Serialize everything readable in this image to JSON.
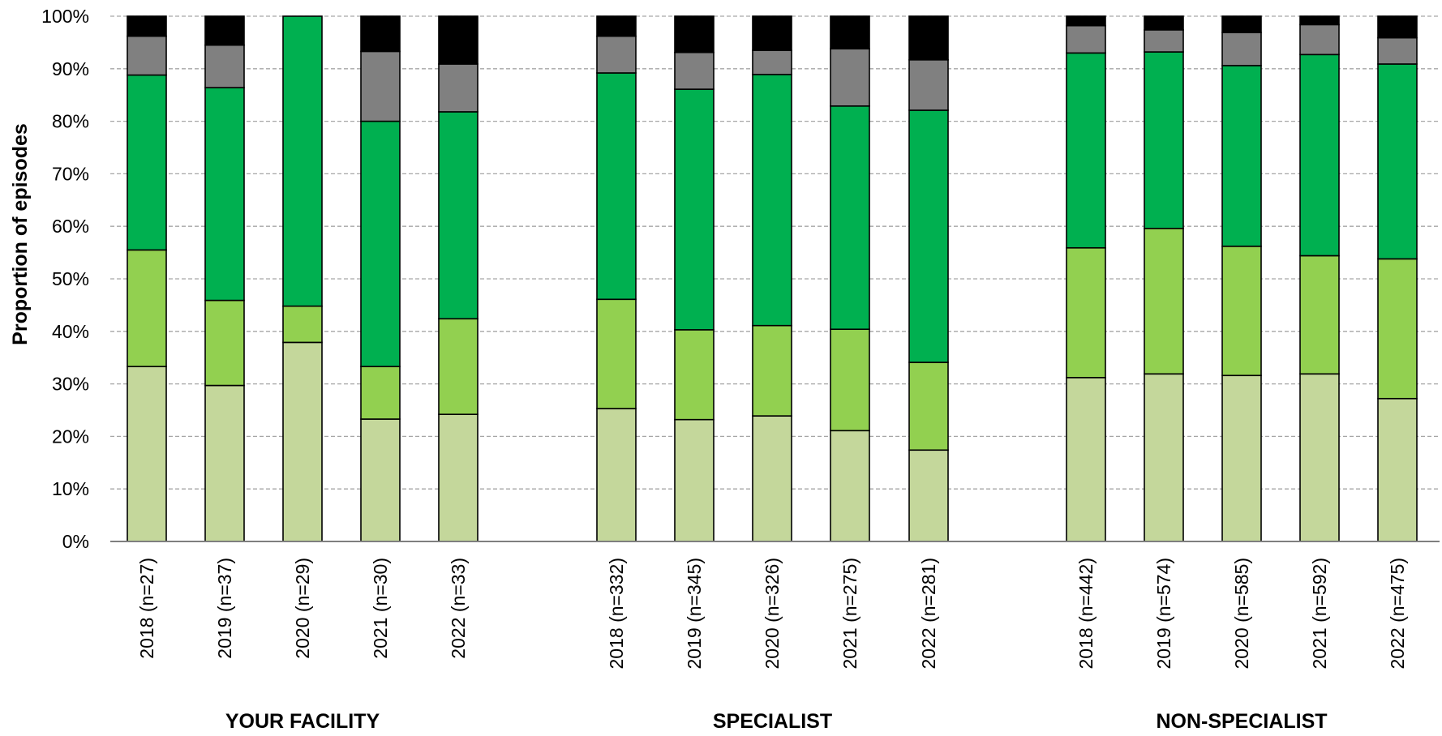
{
  "chart_data": {
    "type": "bar",
    "stacked": true,
    "ylabel": "Proportion of episodes",
    "ylim": [
      0,
      100
    ],
    "y_ticks": [
      "0%",
      "10%",
      "20%",
      "30%",
      "40%",
      "50%",
      "60%",
      "70%",
      "80%",
      "90%",
      "100%"
    ],
    "grid": "horizontal-dashed",
    "groups": [
      {
        "label": "YOUR FACILITY",
        "categories": [
          "2018 (n=27)",
          "2019 (n=37)",
          "2020 (n=29)",
          "2021 (n=30)",
          "2022 (n=33)"
        ]
      },
      {
        "label": "SPECIALIST",
        "categories": [
          "2018 (n=332)",
          "2019 (n=345)",
          "2020 (n=326)",
          "2021 (n=275)",
          "2022 (n=281)"
        ]
      },
      {
        "label": "NON-SPECIALIST",
        "categories": [
          "2018 (n=442)",
          "2019 (n=574)",
          "2020 (n=585)",
          "2021 (n=592)",
          "2022 (n=475)"
        ]
      }
    ],
    "series": [
      {
        "color": "#c4d79b",
        "values": [
          33.3,
          29.7,
          37.9,
          23.3,
          24.2,
          25.3,
          23.2,
          23.9,
          21.1,
          17.4,
          31.2,
          31.9,
          31.6,
          31.9,
          27.2
        ]
      },
      {
        "color": "#92d050",
        "values": [
          22.2,
          16.2,
          6.9,
          10.0,
          18.2,
          20.8,
          17.1,
          17.2,
          19.3,
          16.7,
          24.7,
          27.7,
          24.6,
          22.5,
          26.6
        ]
      },
      {
        "color": "#00b050",
        "values": [
          33.3,
          40.5,
          55.2,
          46.7,
          39.4,
          43.1,
          45.8,
          47.8,
          42.5,
          48.0,
          37.1,
          33.6,
          34.4,
          38.3,
          37.1
        ]
      },
      {
        "color": "#808080",
        "values": [
          7.4,
          8.1,
          0.0,
          13.3,
          9.1,
          7.0,
          7.0,
          4.6,
          10.9,
          9.6,
          5.2,
          4.2,
          6.3,
          5.7,
          5.0
        ]
      },
      {
        "color": "#000000",
        "values": [
          3.8,
          5.5,
          0.0,
          6.7,
          9.1,
          3.8,
          6.9,
          6.5,
          6.2,
          8.3,
          1.8,
          2.6,
          3.1,
          1.6,
          4.1
        ]
      }
    ]
  }
}
